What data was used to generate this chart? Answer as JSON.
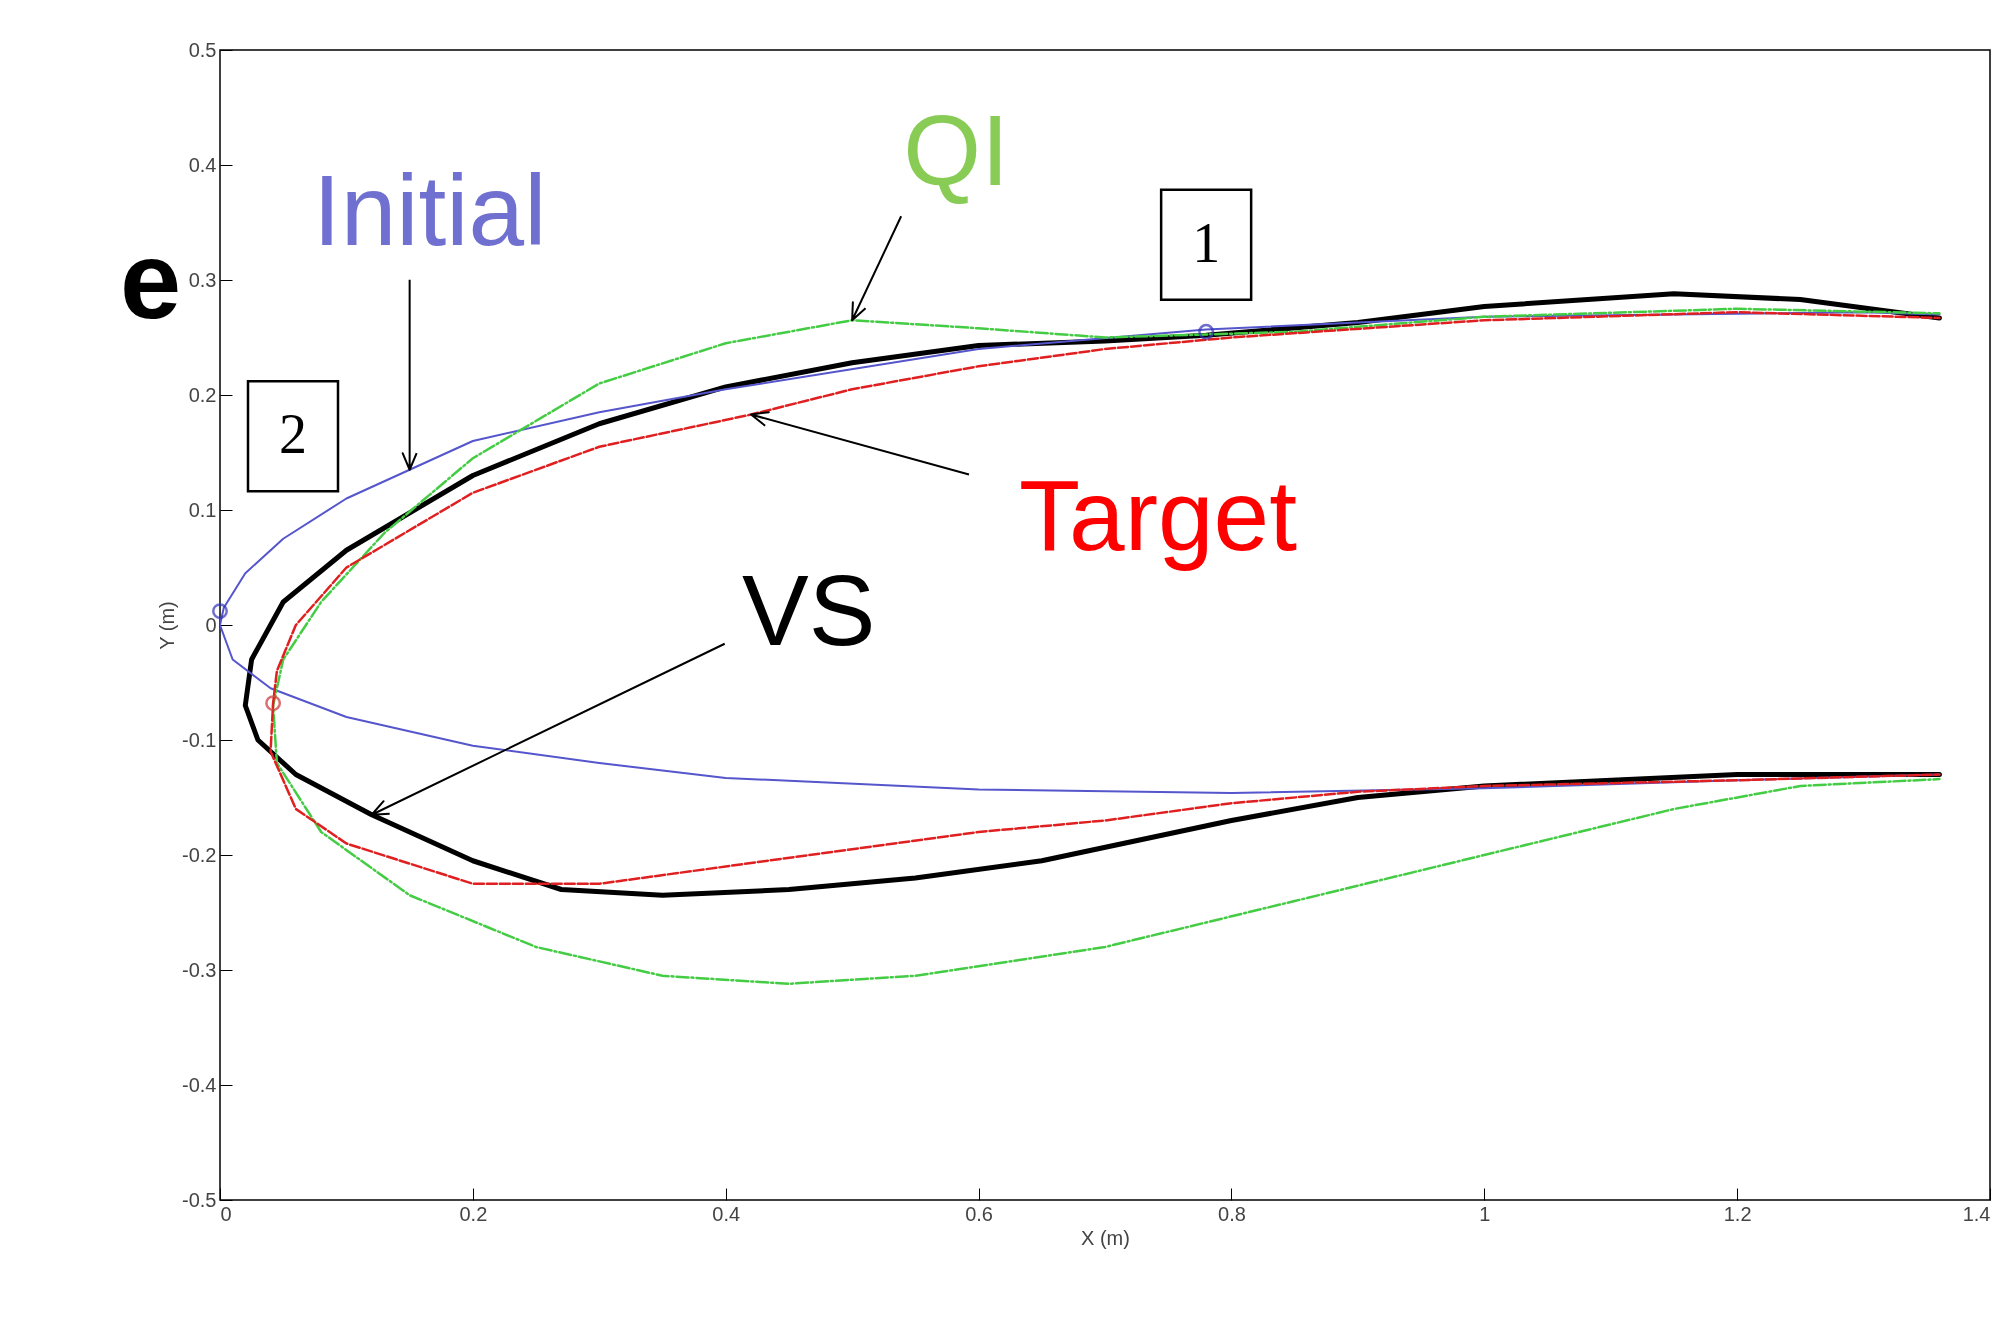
{
  "chart_data": {
    "type": "line",
    "xlabel": "X (m)",
    "ylabel": "Y (m)",
    "xlim": [
      0,
      1.4
    ],
    "xticks": [
      0,
      0.2,
      0.4,
      0.6,
      0.8,
      1,
      1.2,
      1.4
    ],
    "ylim": [
      -0.5,
      0.5
    ],
    "yticks": [
      -0.5,
      -0.4,
      -0.3,
      -0.2,
      -0.1,
      0,
      0.1,
      0.2,
      0.3,
      0.4,
      0.5
    ],
    "grid": false,
    "marker": "none",
    "annotations": [
      "e",
      {
        "text": "1",
        "x": 0.78,
        "y": 0.255
      },
      {
        "text": "2",
        "x": 0.0,
        "y": 0.012
      }
    ],
    "series": [
      {
        "name": "Initial",
        "color": "#5555cc",
        "line_style": "solid",
        "x": [
          1.36,
          1.3,
          1.0,
          0.78,
          0.6,
          0.4,
          0.3,
          0.2,
          0.15,
          0.1,
          0.05,
          0.02,
          0.003,
          0.0,
          0.01,
          0.04,
          0.1,
          0.2,
          0.3,
          0.4,
          0.6,
          0.8,
          1.0,
          1.2,
          1.36
        ],
        "values": [
          0.27,
          0.272,
          0.268,
          0.257,
          0.24,
          0.205,
          0.185,
          0.16,
          0.135,
          0.11,
          0.075,
          0.045,
          0.015,
          0.0,
          -0.03,
          -0.055,
          -0.08,
          -0.105,
          -0.12,
          -0.133,
          -0.143,
          -0.146,
          -0.142,
          -0.135,
          -0.13
        ]
      },
      {
        "name": "QI",
        "color": "#44cc44",
        "line_style": "dashdot",
        "x": [
          1.36,
          1.2,
          1.0,
          0.85,
          0.7,
          0.6,
          0.5,
          0.4,
          0.3,
          0.2,
          0.13,
          0.08,
          0.05,
          0.042,
          0.045,
          0.08,
          0.15,
          0.25,
          0.35,
          0.45,
          0.55,
          0.7,
          0.85,
          1.0,
          1.15,
          1.25,
          1.36
        ],
        "values": [
          0.271,
          0.275,
          0.268,
          0.255,
          0.25,
          0.258,
          0.265,
          0.245,
          0.21,
          0.145,
          0.08,
          0.02,
          -0.03,
          -0.07,
          -0.12,
          -0.18,
          -0.235,
          -0.28,
          -0.305,
          -0.312,
          -0.305,
          -0.28,
          -0.24,
          -0.2,
          -0.16,
          -0.14,
          -0.134
        ]
      },
      {
        "name": "Target",
        "color": "#e02020",
        "line_style": "dashed",
        "x": [
          1.36,
          1.2,
          1.0,
          0.8,
          0.7,
          0.6,
          0.5,
          0.42,
          0.3,
          0.2,
          0.1,
          0.06,
          0.045,
          0.042,
          0.04,
          0.06,
          0.1,
          0.2,
          0.3,
          0.4,
          0.5,
          0.6,
          0.7,
          0.8,
          0.9,
          1.0,
          1.2,
          1.36
        ],
        "values": [
          0.267,
          0.272,
          0.265,
          0.25,
          0.24,
          0.225,
          0.205,
          0.183,
          0.155,
          0.115,
          0.05,
          0.0,
          -0.04,
          -0.068,
          -0.11,
          -0.16,
          -0.19,
          -0.225,
          -0.225,
          -0.21,
          -0.195,
          -0.18,
          -0.17,
          -0.155,
          -0.145,
          -0.14,
          -0.135,
          -0.13
        ]
      },
      {
        "name": "VS",
        "color": "#000000",
        "line_style": "solid",
        "x": [
          1.36,
          1.25,
          1.15,
          1.0,
          0.9,
          0.78,
          0.7,
          0.6,
          0.5,
          0.4,
          0.3,
          0.2,
          0.1,
          0.05,
          0.025,
          0.02,
          0.03,
          0.06,
          0.12,
          0.2,
          0.27,
          0.35,
          0.45,
          0.55,
          0.65,
          0.8,
          0.9,
          1.0,
          1.2,
          1.36
        ],
        "values": [
          0.267,
          0.283,
          0.288,
          0.277,
          0.263,
          0.252,
          0.247,
          0.243,
          0.228,
          0.207,
          0.175,
          0.13,
          0.065,
          0.02,
          -0.03,
          -0.07,
          -0.1,
          -0.13,
          -0.165,
          -0.205,
          -0.23,
          -0.235,
          -0.23,
          -0.22,
          -0.205,
          -0.17,
          -0.15,
          -0.14,
          -0.13,
          -0.13
        ]
      },
      {
        "type": "scatter",
        "color": "#3333bb",
        "marker": "circle",
        "x": [
          0.0,
          0.78
        ],
        "values": [
          0.012,
          0.255
        ]
      },
      {
        "type": "scatter",
        "color": "#cc3333",
        "marker": "circle",
        "x": [
          0.042
        ],
        "values": [
          -0.068
        ]
      }
    ]
  }
}
